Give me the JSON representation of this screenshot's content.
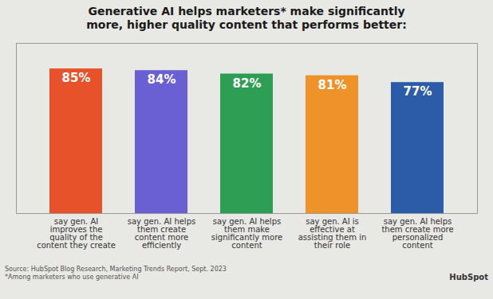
{
  "chart_data": {
    "type": "bar",
    "title": "Generative AI helps marketers* make significantly\nmore, higher quality content that performs better:",
    "categories": [
      "say gen. AI\nimproves the\nquality of the\ncontent they create",
      "say gen. AI helps\nthem create\ncontent more\nefficiently",
      "say gen. AI helps\nthem make\nsignificantly more\ncontent",
      "say gen. AI is\neffective at\nassisting them in\ntheir role",
      "say gen. AI helps\nthem create more\npersonalized\ncontent"
    ],
    "values": [
      85,
      84,
      82,
      81,
      77
    ],
    "value_labels": [
      "85%",
      "84%",
      "82%",
      "81%",
      "77%"
    ],
    "colors": [
      "#E8522A",
      "#6B5FD4",
      "#2E9E55",
      "#F0922A",
      "#2C5BA8"
    ],
    "ylim": [
      0,
      100
    ],
    "grid": false,
    "data_labels": true,
    "tick_labels": "x",
    "annotations": [
      "Source: HubSpot Blog Research, Marketing Trends Report, Sept. 2023\n*Among marketers who use generative AI",
      "Hub",
      "Sp",
      "ot"
    ]
  }
}
